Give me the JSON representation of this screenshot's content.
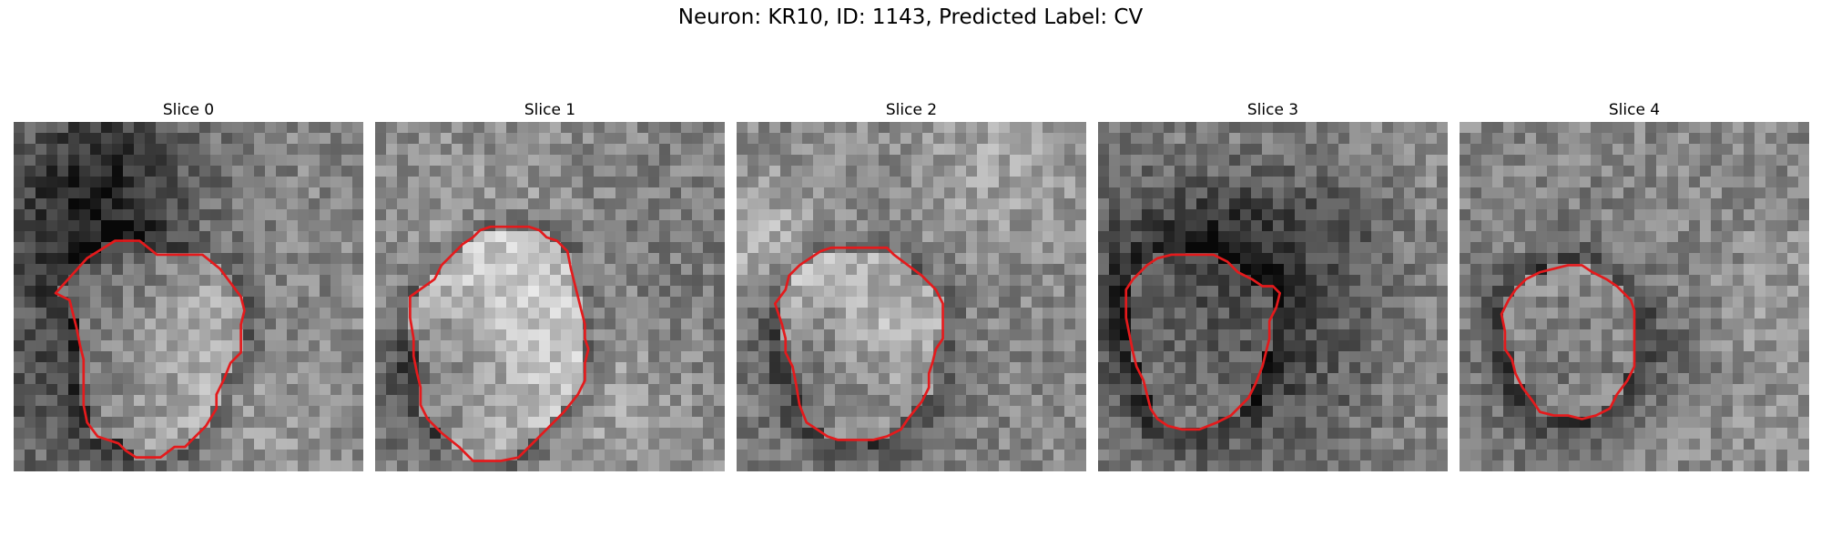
{
  "figure": {
    "title": "Neuron: KR10, ID: 1143, Predicted Label: CV"
  },
  "outline_color": "#e41a1c",
  "panels": [
    {
      "title": "Slice 0",
      "seed": 11,
      "outline_points": [
        [
          12,
          49
        ],
        [
          21,
          39
        ],
        [
          29,
          34
        ],
        [
          36,
          34
        ],
        [
          41,
          38
        ],
        [
          48,
          38
        ],
        [
          54,
          38
        ],
        [
          59,
          42
        ],
        [
          62,
          46
        ],
        [
          65,
          50
        ],
        [
          66,
          54
        ],
        [
          65,
          58
        ],
        [
          65,
          61
        ],
        [
          65,
          66
        ],
        [
          62,
          69
        ],
        [
          60,
          74
        ],
        [
          58,
          78
        ],
        [
          58,
          82
        ],
        [
          55,
          87
        ],
        [
          52,
          90
        ],
        [
          49,
          93
        ],
        [
          46,
          93
        ],
        [
          42,
          96
        ],
        [
          35,
          96
        ],
        [
          32,
          94
        ],
        [
          30,
          92
        ],
        [
          24,
          90
        ],
        [
          21,
          86
        ],
        [
          20,
          81
        ],
        [
          20,
          76
        ],
        [
          20,
          68
        ],
        [
          19,
          64
        ],
        [
          18,
          59
        ],
        [
          17,
          55
        ],
        [
          16,
          51
        ]
      ]
    },
    {
      "title": "Slice 1",
      "seed": 23,
      "outline_points": [
        [
          17,
          45
        ],
        [
          19,
          41
        ],
        [
          22,
          38
        ],
        [
          25,
          35
        ],
        [
          28,
          33
        ],
        [
          30,
          31
        ],
        [
          33,
          30
        ],
        [
          36,
          30
        ],
        [
          40,
          30
        ],
        [
          44,
          30
        ],
        [
          47,
          31
        ],
        [
          49,
          33
        ],
        [
          52,
          34
        ],
        [
          55,
          37
        ],
        [
          56,
          42
        ],
        [
          57,
          46
        ],
        [
          58,
          50
        ],
        [
          59,
          54
        ],
        [
          60,
          58
        ],
        [
          60,
          62
        ],
        [
          61,
          65
        ],
        [
          60,
          69
        ],
        [
          60,
          74
        ],
        [
          58,
          78
        ],
        [
          54,
          83
        ],
        [
          49,
          88
        ],
        [
          44,
          93
        ],
        [
          41,
          96
        ],
        [
          36,
          97
        ],
        [
          30,
          97
        ],
        [
          28,
          97
        ],
        [
          24,
          93
        ],
        [
          19,
          89
        ],
        [
          15,
          85
        ],
        [
          13,
          81
        ],
        [
          13,
          76
        ],
        [
          12,
          72
        ],
        [
          11,
          67
        ],
        [
          11,
          62
        ],
        [
          10,
          56
        ],
        [
          10,
          50
        ]
      ]
    },
    {
      "title": "Slice 2",
      "seed": 37,
      "outline_points": [
        [
          14,
          48
        ],
        [
          15,
          44
        ],
        [
          18,
          41
        ],
        [
          21,
          39
        ],
        [
          24,
          37
        ],
        [
          27,
          36
        ],
        [
          31,
          36
        ],
        [
          35,
          36
        ],
        [
          39,
          36
        ],
        [
          43,
          36
        ],
        [
          45,
          38
        ],
        [
          49,
          41
        ],
        [
          53,
          44
        ],
        [
          57,
          48
        ],
        [
          59,
          52
        ],
        [
          59,
          56
        ],
        [
          59,
          59
        ],
        [
          59,
          62
        ],
        [
          57,
          65
        ],
        [
          56,
          69
        ],
        [
          55,
          72
        ],
        [
          55,
          76
        ],
        [
          53,
          80
        ],
        [
          49,
          85
        ],
        [
          47,
          88
        ],
        [
          43,
          90
        ],
        [
          39,
          91
        ],
        [
          33,
          91
        ],
        [
          29,
          91
        ],
        [
          26,
          90
        ],
        [
          23,
          88
        ],
        [
          20,
          86
        ],
        [
          18,
          81
        ],
        [
          17,
          75
        ],
        [
          16,
          70
        ],
        [
          14,
          66
        ],
        [
          14,
          62
        ],
        [
          13,
          58
        ],
        [
          12,
          55
        ],
        [
          11,
          52
        ]
      ]
    },
    {
      "title": "Slice 3",
      "seed": 53,
      "outline_points": [
        [
          8,
          48
        ],
        [
          10,
          45
        ],
        [
          14,
          41
        ],
        [
          17,
          39
        ],
        [
          21,
          38
        ],
        [
          25,
          38
        ],
        [
          29,
          38
        ],
        [
          33,
          38
        ],
        [
          37,
          40
        ],
        [
          40,
          43
        ],
        [
          44,
          45
        ],
        [
          47,
          47
        ],
        [
          50,
          47
        ],
        [
          52,
          49
        ],
        [
          51,
          53
        ],
        [
          49,
          57
        ],
        [
          49,
          62
        ],
        [
          48,
          66
        ],
        [
          47,
          70
        ],
        [
          45,
          75
        ],
        [
          43,
          79
        ],
        [
          40,
          82
        ],
        [
          38,
          84
        ],
        [
          34,
          86
        ],
        [
          29,
          88
        ],
        [
          24,
          88
        ],
        [
          20,
          87
        ],
        [
          17,
          85
        ],
        [
          15,
          82
        ],
        [
          14,
          78
        ],
        [
          13,
          74
        ],
        [
          11,
          70
        ],
        [
          10,
          66
        ],
        [
          9,
          61
        ],
        [
          8,
          56
        ]
      ]
    },
    {
      "title": "Slice 4",
      "seed": 71,
      "outline_points": [
        [
          14,
          51
        ],
        [
          16,
          48
        ],
        [
          19,
          45
        ],
        [
          23,
          43
        ],
        [
          27,
          42
        ],
        [
          31,
          41
        ],
        [
          35,
          41
        ],
        [
          38,
          43
        ],
        [
          42,
          45
        ],
        [
          45,
          47
        ],
        [
          49,
          51
        ],
        [
          50,
          54
        ],
        [
          50,
          58
        ],
        [
          50,
          62
        ],
        [
          50,
          66
        ],
        [
          50,
          70
        ],
        [
          48,
          74
        ],
        [
          45,
          78
        ],
        [
          43,
          82
        ],
        [
          39,
          84
        ],
        [
          35,
          85
        ],
        [
          31,
          84
        ],
        [
          27,
          84
        ],
        [
          23,
          83
        ],
        [
          21,
          80
        ],
        [
          18,
          76
        ],
        [
          16,
          72
        ],
        [
          15,
          68
        ],
        [
          13,
          65
        ],
        [
          13,
          60
        ],
        [
          12,
          55
        ]
      ]
    }
  ]
}
